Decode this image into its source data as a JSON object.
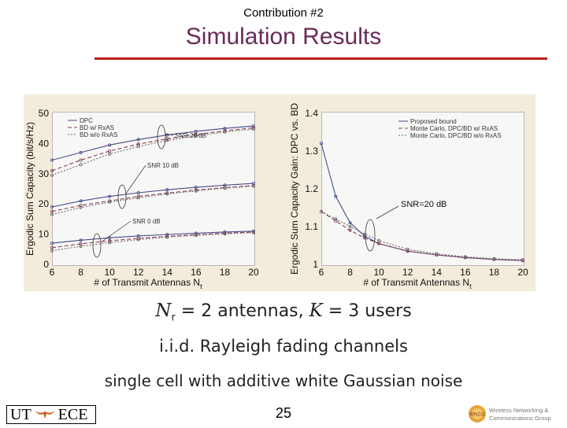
{
  "header": {
    "top_label": "Contribution #2",
    "title": "Simulation Results"
  },
  "chart_data": [
    {
      "type": "line",
      "xlabel": "# of Transmit Antennas N",
      "xlabel_sub": "t",
      "ylabel": "Ergodic Sum Capacity (bit/s/Hz)",
      "xlim": [
        6,
        20
      ],
      "ylim": [
        0,
        50
      ],
      "xticks": [
        "6",
        "8",
        "10",
        "12",
        "14",
        "16",
        "18",
        "20"
      ],
      "yticks": [
        "0",
        "10",
        "20",
        "30",
        "40",
        "50"
      ],
      "legend": [
        "DPC",
        "BD w/ RxAS",
        "BD w/o RxAS"
      ],
      "legend_position": "top-left",
      "annotations": [
        "SNR 20 dB",
        "SNR 10 dB",
        "SNR 0 dB"
      ],
      "x": [
        6,
        8,
        10,
        12,
        14,
        16,
        18,
        20
      ],
      "series": [
        {
          "name": "DPC",
          "snr": "SNR 20 dB",
          "values": [
            34.5,
            37.0,
            39.5,
            41.3,
            42.8,
            44.0,
            45.0,
            45.8
          ]
        },
        {
          "name": "BD w/ RxAS",
          "snr": "SNR 20 dB",
          "values": [
            31.0,
            34.5,
            37.5,
            39.8,
            41.6,
            43.0,
            44.2,
            45.2
          ]
        },
        {
          "name": "BD w/o RxAS",
          "snr": "SNR 20 dB",
          "values": [
            29.5,
            33.0,
            36.5,
            39.0,
            41.0,
            42.5,
            43.8,
            44.8
          ]
        },
        {
          "name": "DPC",
          "snr": "SNR 10 dB",
          "values": [
            19.0,
            21.0,
            22.5,
            23.7,
            24.7,
            25.5,
            26.2,
            26.8
          ]
        },
        {
          "name": "BD w/ RxAS",
          "snr": "SNR 10 dB",
          "values": [
            17.5,
            19.5,
            21.0,
            22.5,
            23.6,
            24.6,
            25.4,
            26.1
          ]
        },
        {
          "name": "BD w/o RxAS",
          "snr": "SNR 10 dB",
          "values": [
            16.5,
            18.8,
            20.6,
            22.0,
            23.3,
            24.3,
            25.2,
            25.9
          ]
        },
        {
          "name": "DPC",
          "snr": "SNR 0 dB",
          "values": [
            7.0,
            8.0,
            8.8,
            9.4,
            9.9,
            10.3,
            10.7,
            11.0
          ]
        },
        {
          "name": "BD w/ RxAS",
          "snr": "SNR 0 dB",
          "values": [
            5.5,
            6.8,
            7.8,
            8.6,
            9.3,
            9.8,
            10.3,
            10.7
          ]
        },
        {
          "name": "BD w/o RxAS",
          "snr": "SNR 0 dB",
          "values": [
            4.5,
            6.0,
            7.2,
            8.2,
            9.0,
            9.6,
            10.1,
            10.5
          ]
        }
      ]
    },
    {
      "type": "line",
      "xlabel": "# of Transmit Antennas N",
      "xlabel_sub": "t",
      "ylabel": "Ergodic Sum Capacity Gain: DPC vs. BD",
      "xlim": [
        6,
        20
      ],
      "ylim": [
        1,
        1.4
      ],
      "xticks": [
        "6",
        "8",
        "10",
        "12",
        "14",
        "16",
        "18",
        "20"
      ],
      "yticks": [
        "1",
        "1.1",
        "1.2",
        "1.3",
        "1.4"
      ],
      "legend": [
        "Proposed bound",
        "Monte Carlo, DPC/BD w/ RxAS",
        "Monte Carlo, DPC/BD w/o RxAS"
      ],
      "legend_position": "top-right",
      "annotations": [
        "SNR=20 dB"
      ],
      "x": [
        6,
        7,
        8,
        9,
        10,
        12,
        14,
        16,
        18,
        20
      ],
      "series": [
        {
          "name": "Proposed bound",
          "values": [
            1.32,
            1.18,
            1.11,
            1.075,
            1.055,
            1.035,
            1.025,
            1.018,
            1.013,
            1.01
          ]
        },
        {
          "name": "Monte Carlo, DPC/BD w/ RxAS",
          "values": [
            1.14,
            1.115,
            1.09,
            1.07,
            1.055,
            1.035,
            1.025,
            1.018,
            1.013,
            1.01
          ]
        },
        {
          "name": "Monte Carlo, DPC/BD w/o RxAS",
          "values": [
            1.14,
            1.12,
            1.1,
            1.08,
            1.063,
            1.04,
            1.028,
            1.02,
            1.015,
            1.012
          ]
        }
      ]
    }
  ],
  "captions": {
    "line1_nr": "N",
    "line1_nr_sub": "r",
    "line1_mid": " = 2 antennas, ",
    "line1_k": "K",
    "line1_end": " = 3 users",
    "line2": "i.i.d. Rayleigh fading channels",
    "line3": "single cell with additive white Gaussian noise"
  },
  "footer": {
    "page_number": "25",
    "left_logo_text_1": "UT",
    "left_logo_text_2": "ECE",
    "right_logo_text_1": "Wireless Networking &",
    "right_logo_text_2": "Communications Group",
    "right_logo_badge": "WNCG"
  },
  "colors": {
    "title": "#6a2a5a",
    "rule": "#c0201a",
    "series": [
      "#4a4a8a",
      "#8a3a5a",
      "#6a6a6a"
    ]
  }
}
